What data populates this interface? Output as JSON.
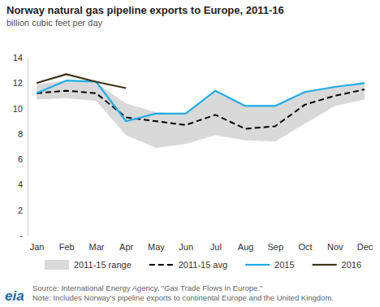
{
  "chart_data": {
    "type": "line",
    "title": "Norway natural gas pipeline exports to Europe, 2011-16",
    "subtitle": "billion cubic feet per day",
    "categories": [
      "Jan",
      "Feb",
      "Mar",
      "Apr",
      "May",
      "Jun",
      "Jul",
      "Aug",
      "Sep",
      "Oct",
      "Nov",
      "Dec"
    ],
    "series": [
      {
        "name": "2011-15 range",
        "type": "area",
        "color": "#d9d9d9",
        "values": [
          11.9,
          12.2,
          12.0,
          10.4,
          9.7,
          9.6,
          11.4,
          10.2,
          10.3,
          11.3,
          11.7,
          12.1
        ],
        "low": [
          10.7,
          10.8,
          10.6,
          7.9,
          6.9,
          7.2,
          7.9,
          7.5,
          7.4,
          8.8,
          10.2,
          10.7
        ]
      },
      {
        "name": "2011-15 avg",
        "type": "line",
        "color": "#000000",
        "line_style": "dashed",
        "values": [
          11.2,
          11.4,
          11.2,
          9.3,
          9.0,
          8.7,
          9.5,
          8.4,
          8.6,
          10.3,
          11.0,
          11.5
        ]
      },
      {
        "name": "2015",
        "type": "line",
        "color": "#1eaee8",
        "line_style": "solid",
        "values": [
          11.2,
          12.2,
          12.1,
          9.0,
          9.6,
          9.6,
          11.4,
          10.2,
          10.2,
          11.3,
          11.7,
          12.0
        ]
      },
      {
        "name": "2016",
        "type": "line",
        "color": "#3f3316",
        "line_style": "solid",
        "values": [
          12.0,
          12.7,
          12.1,
          11.6,
          null,
          null,
          null,
          null,
          null,
          null,
          null,
          null
        ]
      }
    ],
    "ylim": [
      0,
      14
    ],
    "yticks": [
      {
        "value": 0,
        "label": "-"
      },
      2,
      4,
      6,
      8,
      10,
      12,
      14
    ],
    "grid": false,
    "legend": "bottom",
    "source": "Source: International Energy Agency, \"Gas Trade Flows in Europe.\"",
    "note": "Note: Includes Norway's pipeline exports to continental Europe and the United Kingdom.",
    "logo": "eia"
  }
}
